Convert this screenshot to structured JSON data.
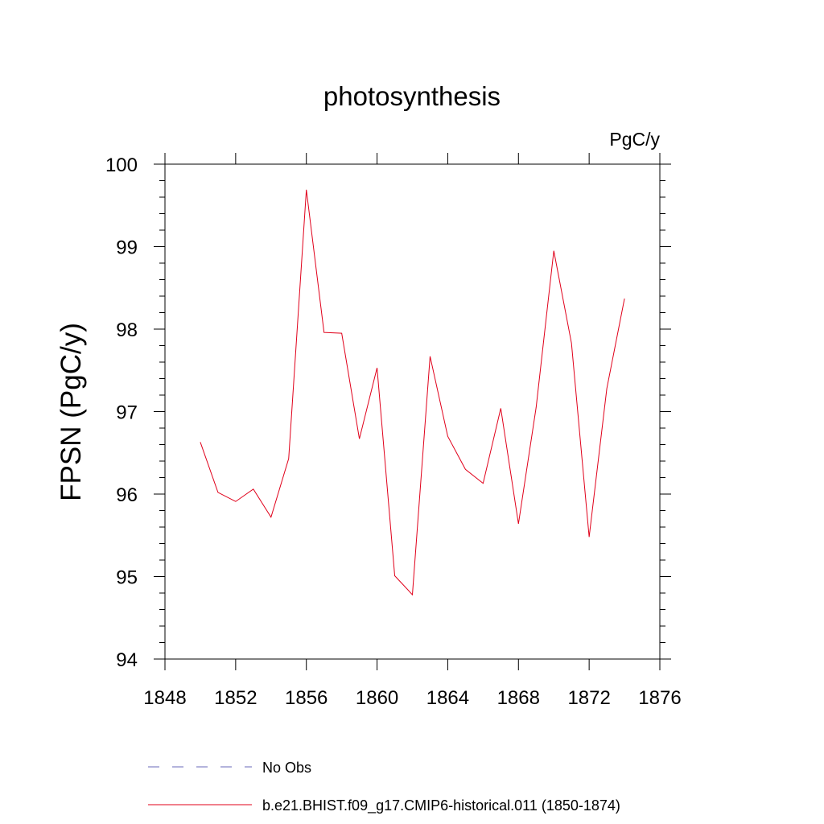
{
  "chart_data": {
    "type": "line",
    "title": "photosynthesis",
    "units_label": "PgC/y",
    "ylabel": "FPSN  (PgC/y)",
    "xlabel": "",
    "xlim": [
      1848,
      1876
    ],
    "ylim": [
      94,
      100
    ],
    "x_ticks": [
      "1848",
      "1852",
      "1856",
      "1860",
      "1864",
      "1868",
      "1872",
      "1876"
    ],
    "y_ticks": [
      "94",
      "95",
      "96",
      "97",
      "98",
      "99",
      "100"
    ],
    "grid": false,
    "legend_position": "bottom",
    "series": [
      {
        "name": "No Obs",
        "color": "#6a6ab8",
        "style": "dashed",
        "x": [],
        "values": []
      },
      {
        "name": "b.e21.BHIST.f09_g17.CMIP6-historical.011 (1850-1874)",
        "color": "#e0001a",
        "style": "solid",
        "x": [
          1850,
          1851,
          1852,
          1853,
          1854,
          1855,
          1856,
          1857,
          1858,
          1859,
          1860,
          1861,
          1862,
          1863,
          1864,
          1865,
          1866,
          1867,
          1868,
          1869,
          1870,
          1871,
          1872,
          1873,
          1874
        ],
        "values": [
          96.63,
          96.02,
          95.91,
          96.06,
          95.72,
          96.43,
          99.69,
          97.96,
          97.95,
          96.67,
          97.53,
          95.01,
          94.78,
          97.67,
          96.7,
          96.3,
          96.13,
          97.04,
          95.64,
          97.05,
          98.95,
          97.83,
          95.48,
          97.28,
          98.37
        ]
      }
    ]
  }
}
